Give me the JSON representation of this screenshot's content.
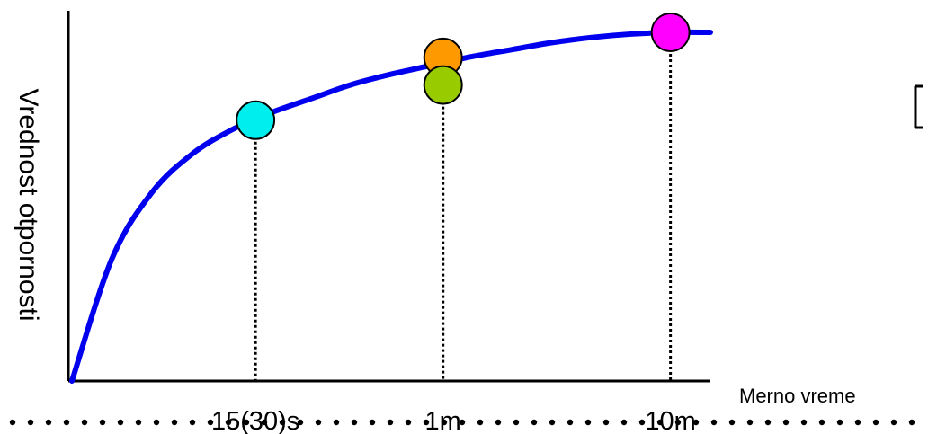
{
  "chart_data": {
    "type": "line",
    "title": "",
    "xlabel": "Merno vreme",
    "ylabel": "Vrednost otpornosti",
    "x_ticks": [
      "15(30)s",
      "1m",
      "10m"
    ],
    "curve_color": "#0000ee",
    "series": [
      {
        "x": [
          0,
          1,
          2,
          3,
          4,
          5,
          6,
          7,
          8,
          9,
          10,
          11,
          12,
          13,
          14,
          15,
          16
        ],
        "y": [
          0.0,
          0.35,
          0.54,
          0.65,
          0.72,
          0.77,
          0.81,
          0.85,
          0.88,
          0.905,
          0.93,
          0.95,
          0.97,
          0.985,
          0.995,
          1.0,
          1.0
        ]
      }
    ],
    "markers": [
      {
        "x_tick": "15(30)s",
        "x": 4.6,
        "y": 0.748,
        "color": "#00eeee"
      },
      {
        "x_tick": "1m",
        "x": 9.3,
        "y": 0.928,
        "color": "#ff9900"
      },
      {
        "x_tick": "1m",
        "x": 9.3,
        "y": 0.849,
        "color": "#99cc00"
      },
      {
        "x_tick": "10m",
        "x": 15.0,
        "y": 1.0,
        "color": "#ff00ff"
      }
    ],
    "grid": false,
    "legend": "none"
  }
}
